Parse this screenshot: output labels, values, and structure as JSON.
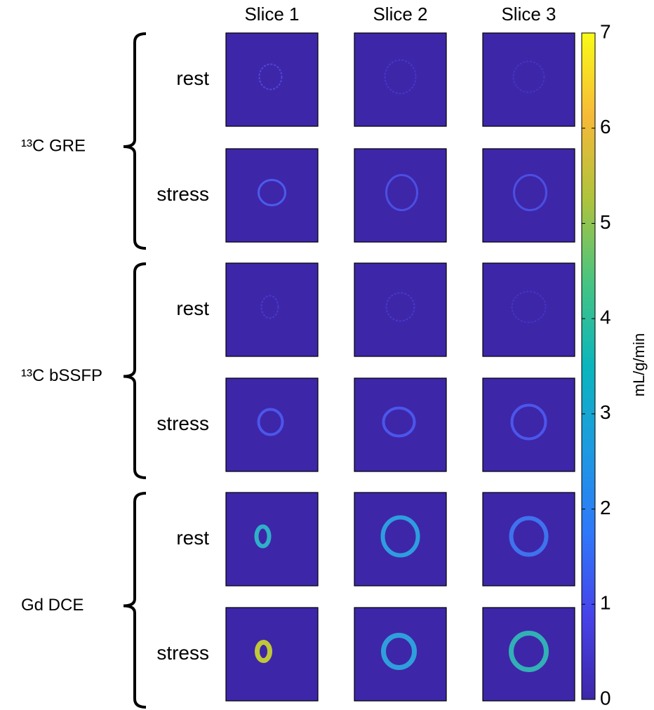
{
  "columns": [
    "Slice 1",
    "Slice 2",
    "Slice 3"
  ],
  "groups": [
    {
      "label": "¹³C GRE",
      "rows": [
        "rest",
        "stress"
      ]
    },
    {
      "label": "¹³C bSSFP",
      "rows": [
        "rest",
        "stress"
      ]
    },
    {
      "label": "Gd DCE",
      "rows": [
        "rest",
        "stress"
      ]
    }
  ],
  "colorbar": {
    "label": "mL/g/min",
    "lim": [
      0,
      7
    ],
    "ticks": [
      0,
      1,
      2,
      3,
      4,
      5,
      6,
      7
    ]
  }
}
